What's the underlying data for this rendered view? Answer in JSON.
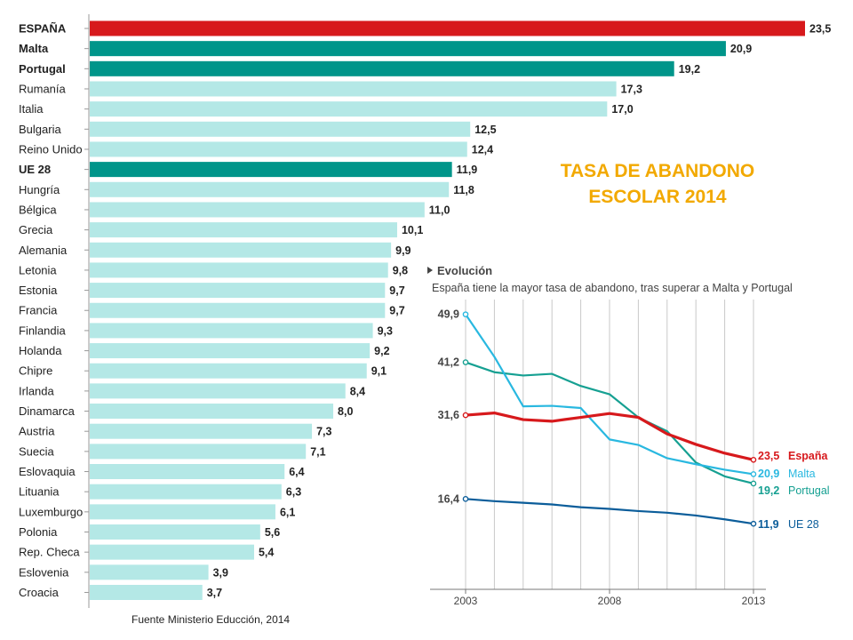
{
  "headline": {
    "line1": "TASA DE ABANDONO",
    "line2": "ESCOLAR 2014"
  },
  "source": "Fuente Ministerio Educción, 2014",
  "evolution": {
    "title": "Evolución",
    "subtitle": "España tiene la mayor tasa de abandono, tras superar a Malta y Portugal"
  },
  "colors": {
    "highlight_red": "#d7191c",
    "highlight_teal": "#00958a",
    "default_bar": "#b4e8e6",
    "espana_line": "#d7191c",
    "malta_line": "#29b8e0",
    "portugal_line": "#16a092",
    "ue_line": "#0b5d9a",
    "headline": "#f2a900"
  },
  "chart_data": [
    {
      "type": "bar",
      "orientation": "horizontal",
      "categories": [
        "ESPAÑA",
        "Malta",
        "Portugal",
        "Rumanía",
        "Italia",
        "Bulgaria",
        "Reino Unido",
        "UE 28",
        "Hungría",
        "Bélgica",
        "Grecia",
        "Alemania",
        "Letonia",
        "Estonia",
        "Francia",
        "Finlandia",
        "Holanda",
        "Chipre",
        "Irlanda",
        "Dinamarca",
        "Austria",
        "Suecia",
        "Eslovaquia",
        "Lituania",
        "Luxemburgo",
        "Polonia",
        "Rep. Checa",
        "Eslovenia",
        "Croacia"
      ],
      "values": [
        23.5,
        20.9,
        19.2,
        17.3,
        17.0,
        12.5,
        12.4,
        11.9,
        11.8,
        11.0,
        10.1,
        9.9,
        9.8,
        9.7,
        9.7,
        9.3,
        9.2,
        9.1,
        8.4,
        8.0,
        7.3,
        7.1,
        6.4,
        6.3,
        6.1,
        5.6,
        5.4,
        3.9,
        3.7
      ],
      "value_labels": [
        "23,5",
        "20,9",
        "19,2",
        "17,3",
        "17,0",
        "12,5",
        "12,4",
        "11,9",
        "11,8",
        "11,0",
        "10,1",
        "9,9",
        "9,8",
        "9,7",
        "9,7",
        "9,3",
        "9,2",
        "9,1",
        "8,4",
        "8,0",
        "7,3",
        "7,1",
        "6,4",
        "6,3",
        "6,1",
        "5,6",
        "5,4",
        "3,9",
        "3,7"
      ],
      "highlight": {
        "ESPAÑA": "red",
        "Malta": "teal",
        "Portugal": "teal",
        "UE 28": "teal"
      },
      "bold_categories": [
        "ESPAÑA",
        "Malta",
        "Portugal",
        "UE 28"
      ],
      "title": "TASA DE ABANDONO ESCOLAR 2014"
    },
    {
      "type": "line",
      "title": "Evolución",
      "subtitle": "España tiene la mayor tasa de abandono, tras superar a Malta y Portugal",
      "x": [
        2003,
        2004,
        2005,
        2006,
        2007,
        2008,
        2009,
        2010,
        2011,
        2012,
        2013
      ],
      "x_tick_labels": [
        "2003",
        "2008",
        "2013"
      ],
      "x_ticks": [
        2003,
        2008,
        2013
      ],
      "y_tick_labels": [
        "49,9",
        "41,2",
        "31,6",
        "16,4"
      ],
      "y_ticks": [
        49.9,
        41.2,
        31.6,
        16.4
      ],
      "ylim": [
        0,
        52
      ],
      "grid": "vertical",
      "series": [
        {
          "name": "España",
          "values": [
            31.6,
            32.0,
            30.8,
            30.5,
            31.2,
            31.9,
            31.2,
            28.2,
            26.3,
            24.7,
            23.5
          ],
          "end_label": "23,5",
          "color": "#d7191c",
          "width": 3.2
        },
        {
          "name": "Malta",
          "values": [
            49.9,
            42.2,
            33.2,
            33.3,
            32.9,
            27.2,
            26.2,
            23.8,
            22.7,
            21.7,
            20.9
          ],
          "end_label": "20,9",
          "color": "#29b8e0",
          "width": 2.2
        },
        {
          "name": "Portugal",
          "values": [
            41.2,
            39.4,
            38.8,
            39.1,
            36.9,
            35.4,
            31.2,
            28.7,
            23.0,
            20.5,
            19.2
          ],
          "end_label": "19,2",
          "color": "#16a092",
          "width": 2.2
        },
        {
          "name": "UE 28",
          "values": [
            16.4,
            16.0,
            15.7,
            15.4,
            14.9,
            14.6,
            14.2,
            13.9,
            13.4,
            12.7,
            11.9
          ],
          "end_label": "11,9",
          "color": "#0b5d9a",
          "width": 2.2
        }
      ]
    }
  ]
}
